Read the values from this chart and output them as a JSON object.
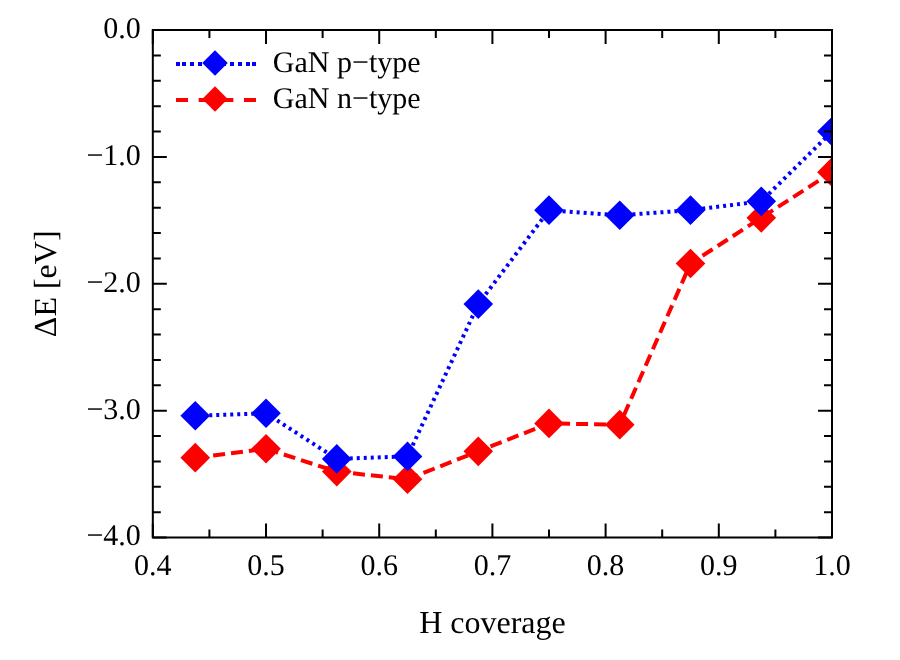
{
  "chart_data": {
    "type": "line",
    "xlabel": "H coverage",
    "ylabel": "ΔE [eV]",
    "xlim": [
      0.4,
      1.0
    ],
    "xticks": [
      0.4,
      {
        "value": 0.45,
        "label": null
      },
      0.5,
      {
        "value": 0.55,
        "label": null
      },
      0.6,
      {
        "value": 0.65,
        "label": null
      },
      0.7,
      {
        "value": 0.75,
        "label": null
      },
      0.8,
      {
        "value": 0.85,
        "label": null
      },
      0.9,
      {
        "value": 0.95,
        "label": null
      },
      {
        "value": 1.0,
        "label": "1.0"
      }
    ],
    "ylim": [
      -4,
      0
    ],
    "yticks": [
      {
        "value": -4,
        "label": "−4.0"
      },
      {
        "value": -3.8,
        "label": null
      },
      {
        "value": -3.6,
        "label": null
      },
      {
        "value": -3.4,
        "label": null
      },
      {
        "value": -3.2,
        "label": null
      },
      {
        "value": -3,
        "label": "−3.0"
      },
      {
        "value": -2.8,
        "label": null
      },
      {
        "value": -2.6,
        "label": null
      },
      {
        "value": -2.4,
        "label": null
      },
      {
        "value": -2.2,
        "label": null
      },
      {
        "value": -2,
        "label": "−2.0"
      },
      {
        "value": -1.8,
        "label": null
      },
      {
        "value": -1.6,
        "label": null
      },
      {
        "value": -1.4,
        "label": null
      },
      {
        "value": -1.2,
        "label": null
      },
      {
        "value": -1,
        "label": "−1.0"
      },
      {
        "value": -0.8,
        "label": null
      },
      {
        "value": -0.6,
        "label": null
      },
      {
        "value": -0.4,
        "label": null
      },
      {
        "value": -0.2,
        "label": null
      },
      {
        "value": 0,
        "label": "0.0"
      }
    ],
    "x": [
      0.4375,
      0.5,
      0.5625,
      0.625,
      0.6875,
      0.75,
      0.8125,
      0.875,
      0.9375,
      1.0
    ],
    "series": [
      {
        "name": "GaN p−type",
        "color": "#0000ff",
        "line_style": "dotted",
        "marker": "diamond",
        "values": [
          -3.04,
          -3.02,
          -3.38,
          -3.36,
          -2.16,
          -1.42,
          -1.46,
          -1.42,
          -1.35,
          -0.8
        ]
      },
      {
        "name": "GaN n−type",
        "color": "#ff0000",
        "line_style": "dashed",
        "marker": "diamond",
        "values": [
          -3.37,
          -3.3,
          -3.48,
          -3.54,
          -3.32,
          -3.1,
          -3.11,
          -1.84,
          -1.48,
          -1.12
        ]
      }
    ],
    "grid": false,
    "legend": "top left"
  }
}
